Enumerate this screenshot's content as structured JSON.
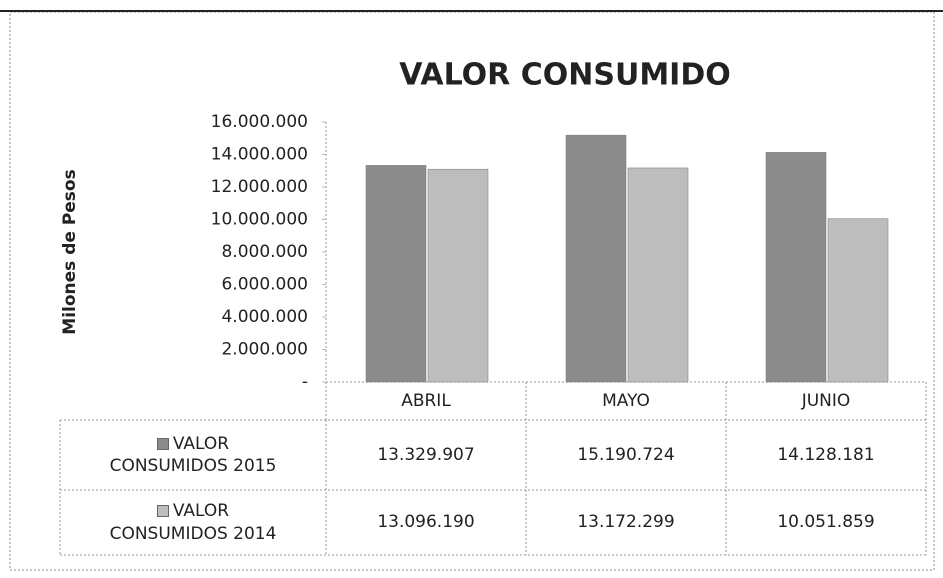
{
  "chart_data": {
    "type": "bar",
    "title": "VALOR CONSUMIDO",
    "y_axis_label": "Milones de Pesos",
    "categories": [
      "ABRIL",
      "MAYO",
      "JUNIO"
    ],
    "series": [
      {
        "name": "VALOR CONSUMIDOS 2015",
        "color": "#8c8c8c",
        "values": [
          13329907,
          15190724,
          14128181
        ],
        "value_labels": [
          "13.329.907",
          "15.190.724",
          "14.128.181"
        ]
      },
      {
        "name": "VALOR CONSUMIDOS 2014",
        "color": "#bdbdbd",
        "values": [
          13096190,
          13172299,
          10051859
        ],
        "value_labels": [
          "13.096.190",
          "13.172.299",
          "10.051.859"
        ]
      }
    ],
    "ylim": [
      0,
      16000000
    ],
    "yticks": [
      {
        "value": 0,
        "label": "-"
      },
      {
        "value": 2000000,
        "label": "2.000.000"
      },
      {
        "value": 4000000,
        "label": "4.000.000"
      },
      {
        "value": 6000000,
        "label": "6.000.000"
      },
      {
        "value": 8000000,
        "label": "8.000.000"
      },
      {
        "value": 10000000,
        "label": "10.000.000"
      },
      {
        "value": 12000000,
        "label": "12.000.000"
      },
      {
        "value": 14000000,
        "label": "14.000.000"
      },
      {
        "value": 16000000,
        "label": "16.000.000"
      }
    ],
    "grid": false
  }
}
